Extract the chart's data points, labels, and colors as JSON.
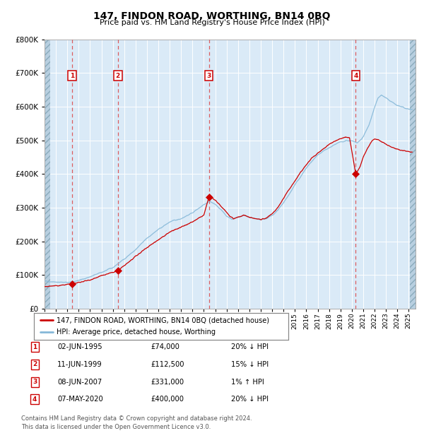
{
  "title": "147, FINDON ROAD, WORTHING, BN14 0BQ",
  "subtitle": "Price paid vs. HM Land Registry's House Price Index (HPI)",
  "ylim": [
    0,
    800000
  ],
  "yticks": [
    0,
    100000,
    200000,
    300000,
    400000,
    500000,
    600000,
    700000,
    800000
  ],
  "ytick_labels": [
    "£0",
    "£100K",
    "£200K",
    "£300K",
    "£400K",
    "£500K",
    "£600K",
    "£700K",
    "£800K"
  ],
  "bg_color": "#daeaf7",
  "hatch_color": "#b8cfe0",
  "grid_color": "#ffffff",
  "sale_line_color": "#cc0000",
  "hpi_line_color": "#85b8d8",
  "marker_color": "#cc0000",
  "dashed_line_color": "#dd4444",
  "number_box_color": "#cc0000",
  "sales": [
    {
      "num": 1,
      "date": "1995-06-02",
      "price": 74000,
      "x_year": 1995.42
    },
    {
      "num": 2,
      "date": "1999-06-11",
      "price": 112500,
      "x_year": 1999.44
    },
    {
      "num": 3,
      "date": "2007-06-08",
      "price": 331000,
      "x_year": 2007.44
    },
    {
      "num": 4,
      "date": "2020-05-07",
      "price": 400000,
      "x_year": 2020.35
    }
  ],
  "legend_label_sale": "147, FINDON ROAD, WORTHING, BN14 0BQ (detached house)",
  "legend_label_hpi": "HPI: Average price, detached house, Worthing",
  "table_rows": [
    {
      "num": 1,
      "date": "02-JUN-1995",
      "price": "£74,000",
      "hpi": "20% ↓ HPI"
    },
    {
      "num": 2,
      "date": "11-JUN-1999",
      "price": "£112,500",
      "hpi": "15% ↓ HPI"
    },
    {
      "num": 3,
      "date": "08-JUN-2007",
      "price": "£331,000",
      "hpi": "1% ↑ HPI"
    },
    {
      "num": 4,
      "date": "07-MAY-2020",
      "price": "£400,000",
      "hpi": "20% ↓ HPI"
    }
  ],
  "footer": "Contains HM Land Registry data © Crown copyright and database right 2024.\nThis data is licensed under the Open Government Licence v3.0.",
  "xmin": 1993.0,
  "xmax": 2025.6,
  "hpi_anchors": [
    [
      1993.0,
      82000
    ],
    [
      1994.0,
      80000
    ],
    [
      1995.0,
      78000
    ],
    [
      1996.0,
      84000
    ],
    [
      1997.0,
      95000
    ],
    [
      1998.0,
      108000
    ],
    [
      1999.0,
      122000
    ],
    [
      2000.0,
      148000
    ],
    [
      2001.0,
      175000
    ],
    [
      2002.0,
      210000
    ],
    [
      2003.0,
      235000
    ],
    [
      2004.0,
      258000
    ],
    [
      2005.0,
      268000
    ],
    [
      2006.0,
      285000
    ],
    [
      2007.0,
      310000
    ],
    [
      2007.5,
      320000
    ],
    [
      2008.0,
      310000
    ],
    [
      2008.5,
      295000
    ],
    [
      2009.0,
      275000
    ],
    [
      2009.5,
      265000
    ],
    [
      2010.0,
      272000
    ],
    [
      2010.5,
      278000
    ],
    [
      2011.0,
      272000
    ],
    [
      2011.5,
      268000
    ],
    [
      2012.0,
      265000
    ],
    [
      2012.5,
      268000
    ],
    [
      2013.0,
      278000
    ],
    [
      2013.5,
      292000
    ],
    [
      2014.0,
      315000
    ],
    [
      2014.5,
      340000
    ],
    [
      2015.0,
      368000
    ],
    [
      2015.5,
      392000
    ],
    [
      2016.0,
      418000
    ],
    [
      2016.5,
      438000
    ],
    [
      2017.0,
      455000
    ],
    [
      2017.5,
      468000
    ],
    [
      2018.0,
      478000
    ],
    [
      2018.5,
      488000
    ],
    [
      2019.0,
      495000
    ],
    [
      2019.5,
      500000
    ],
    [
      2020.0,
      498000
    ],
    [
      2020.5,
      492000
    ],
    [
      2021.0,
      510000
    ],
    [
      2021.5,
      545000
    ],
    [
      2022.0,
      598000
    ],
    [
      2022.3,
      625000
    ],
    [
      2022.6,
      635000
    ],
    [
      2022.9,
      628000
    ],
    [
      2023.3,
      618000
    ],
    [
      2023.8,
      608000
    ],
    [
      2024.3,
      600000
    ],
    [
      2024.8,
      595000
    ],
    [
      2025.3,
      592000
    ]
  ],
  "sale_anchors": [
    [
      1993.0,
      66000
    ],
    [
      1994.0,
      68000
    ],
    [
      1995.42,
      74000
    ],
    [
      1996.0,
      78000
    ],
    [
      1997.0,
      86000
    ],
    [
      1998.0,
      98000
    ],
    [
      1999.44,
      112500
    ],
    [
      2000.0,
      128000
    ],
    [
      2001.0,
      155000
    ],
    [
      2002.0,
      182000
    ],
    [
      2003.0,
      205000
    ],
    [
      2004.0,
      228000
    ],
    [
      2005.0,
      242000
    ],
    [
      2006.0,
      258000
    ],
    [
      2007.0,
      278000
    ],
    [
      2007.44,
      331000
    ],
    [
      2007.8,
      328000
    ],
    [
      2008.3,
      312000
    ],
    [
      2008.8,
      295000
    ],
    [
      2009.2,
      278000
    ],
    [
      2009.6,
      268000
    ],
    [
      2010.0,
      272000
    ],
    [
      2010.5,
      278000
    ],
    [
      2011.0,
      272000
    ],
    [
      2011.5,
      268000
    ],
    [
      2012.0,
      265000
    ],
    [
      2012.5,
      270000
    ],
    [
      2013.0,
      282000
    ],
    [
      2013.5,
      300000
    ],
    [
      2014.0,
      328000
    ],
    [
      2014.5,
      355000
    ],
    [
      2015.0,
      380000
    ],
    [
      2015.5,
      405000
    ],
    [
      2016.0,
      428000
    ],
    [
      2016.5,
      448000
    ],
    [
      2017.0,
      462000
    ],
    [
      2017.5,
      475000
    ],
    [
      2018.0,
      488000
    ],
    [
      2018.5,
      498000
    ],
    [
      2019.0,
      505000
    ],
    [
      2019.5,
      510000
    ],
    [
      2019.8,
      508000
    ],
    [
      2020.35,
      400000
    ],
    [
      2020.7,
      420000
    ],
    [
      2021.0,
      450000
    ],
    [
      2021.4,
      478000
    ],
    [
      2021.8,
      500000
    ],
    [
      2022.0,
      505000
    ],
    [
      2022.3,
      502000
    ],
    [
      2022.6,
      496000
    ],
    [
      2023.0,
      488000
    ],
    [
      2023.5,
      480000
    ],
    [
      2024.0,
      474000
    ],
    [
      2024.5,
      470000
    ],
    [
      2025.3,
      466000
    ]
  ]
}
